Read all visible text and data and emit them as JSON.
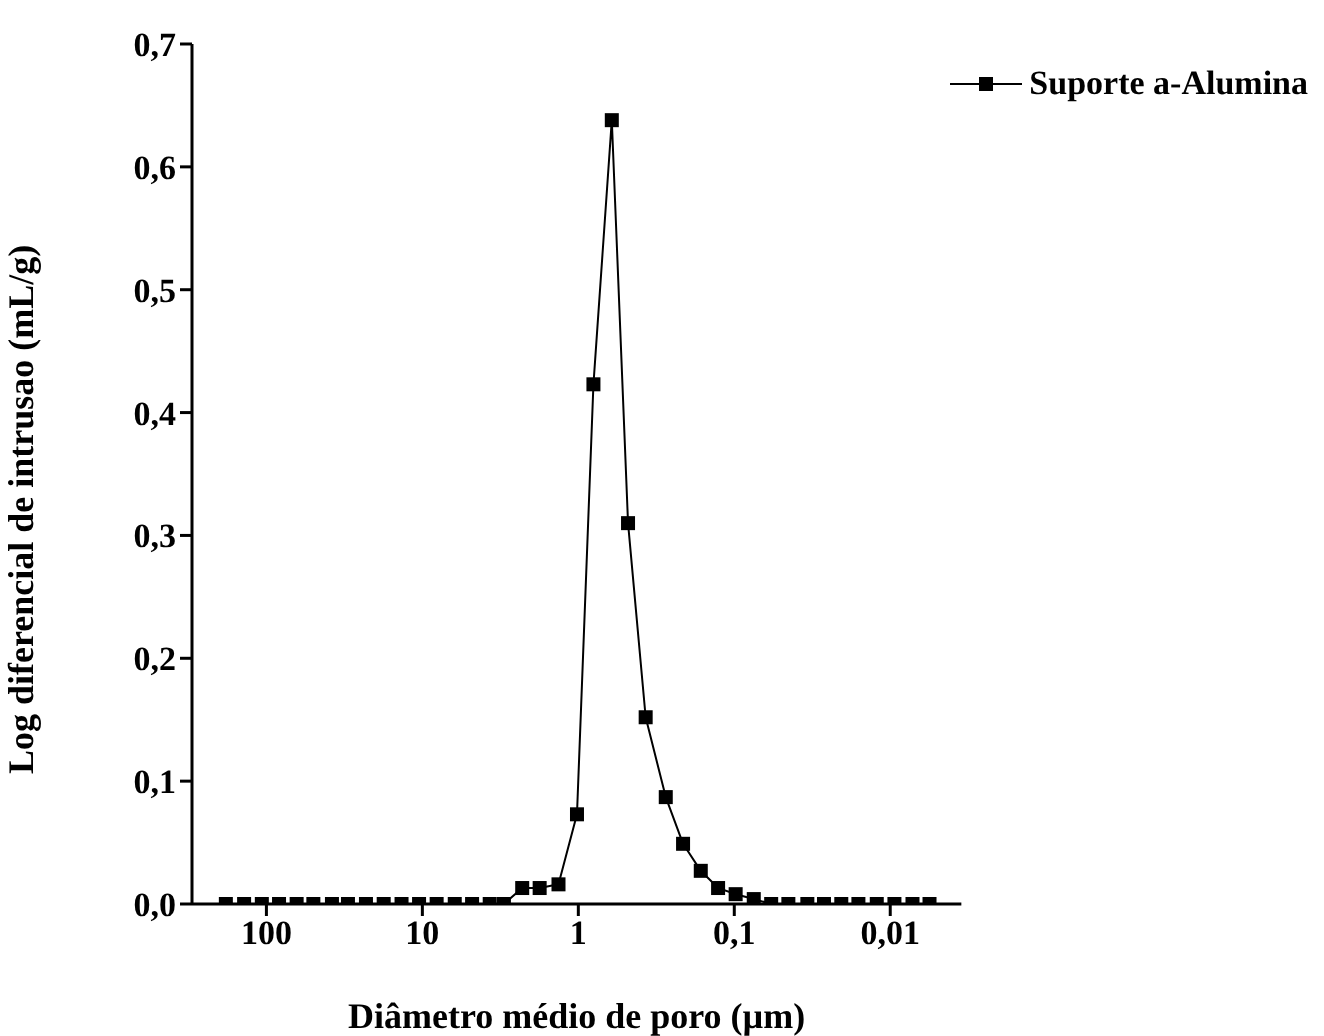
{
  "chart_data": {
    "type": "line",
    "xlabel": "Diâmetro médio de poro (µm)",
    "ylabel": "Log diferencial de intrusao (mL/g)",
    "log": "x",
    "marker": "square",
    "legend": "top right",
    "grid": false,
    "xlim": [
      300,
      0.0035
    ],
    "ylim": [
      0,
      0.7
    ],
    "xticks": [
      {
        "value": 100,
        "label": "100"
      },
      {
        "value": 10,
        "label": "10"
      },
      {
        "value": 1,
        "label": "1"
      },
      {
        "value": 0.1,
        "label": "0,1"
      },
      {
        "value": 0.01,
        "label": "0,01"
      }
    ],
    "yticks": [
      {
        "value": 0,
        "label": "0,0"
      },
      {
        "value": 0.1,
        "label": "0,1"
      },
      {
        "value": 0.2,
        "label": "0,2"
      },
      {
        "value": 0.3,
        "label": "0,3"
      },
      {
        "value": 0.4,
        "label": "0,4"
      },
      {
        "value": 0.5,
        "label": "0,5"
      },
      {
        "value": 0.6,
        "label": "0,6"
      },
      {
        "value": 0.7,
        "label": "0,7"
      }
    ],
    "series": [
      {
        "name": "Suporte a-Alumina",
        "color": "#000000",
        "x": [
          182,
          139,
          107,
          83,
          64,
          50,
          38,
          30,
          23,
          17.7,
          13.6,
          10.5,
          8.1,
          6.2,
          4.8,
          3.7,
          3.0,
          2.29,
          1.77,
          1.34,
          1.02,
          0.8,
          0.61,
          0.48,
          0.37,
          0.275,
          0.213,
          0.164,
          0.127,
          0.098,
          0.075,
          0.058,
          0.045,
          0.034,
          0.0266,
          0.0206,
          0.016,
          0.0122,
          0.0094,
          0.0072,
          0.0056
        ],
        "values": [
          0,
          0,
          0,
          0,
          0,
          0,
          0,
          0,
          0,
          0,
          0,
          0,
          0,
          0,
          0,
          0,
          0,
          0.013,
          0.013,
          0.016,
          0.073,
          0.423,
          0.638,
          0.31,
          0.152,
          0.087,
          0.049,
          0.027,
          0.013,
          0.008,
          0.004,
          0,
          0,
          0,
          0,
          0,
          0,
          0,
          0,
          0,
          0
        ]
      }
    ]
  }
}
